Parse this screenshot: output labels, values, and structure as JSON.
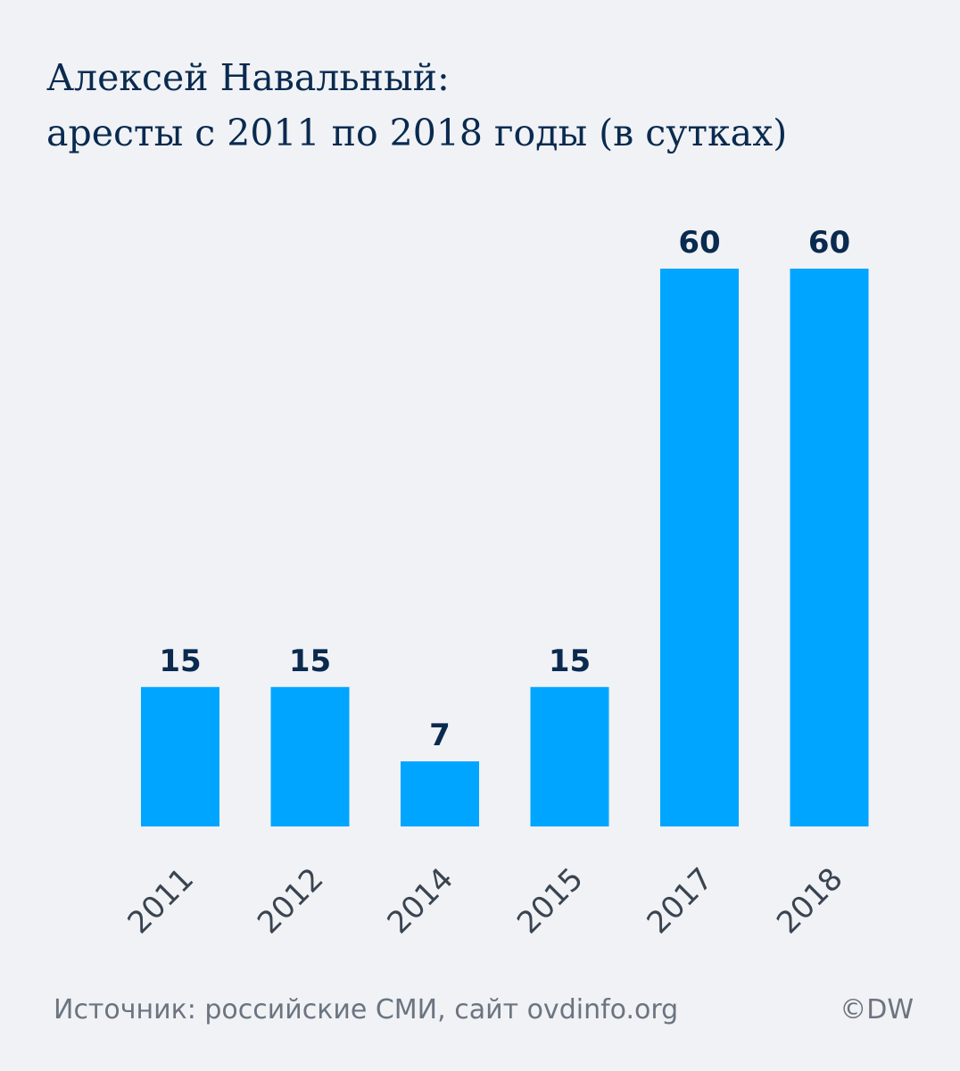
{
  "header": {
    "title_line1": "Алексей Навальный:",
    "title_line2": "аресты с 2011 по 2018 годы (в сутках)"
  },
  "chart_data": {
    "type": "bar",
    "title": "Алексей Навальный: аресты с 2011 по 2018 годы (в сутках)",
    "categories": [
      "2011",
      "2012",
      "2014",
      "2015",
      "2017",
      "2018"
    ],
    "values": [
      15,
      15,
      7,
      15,
      60,
      60
    ],
    "ylim": [
      0,
      60
    ],
    "grid": false,
    "xlabel": "",
    "ylabel": "",
    "bar_color": "#00a5ff",
    "label_color": "#0a2a4f"
  },
  "footer": {
    "source": "Источник: российские СМИ, сайт ovdinfo.org",
    "credit": "©DW"
  }
}
